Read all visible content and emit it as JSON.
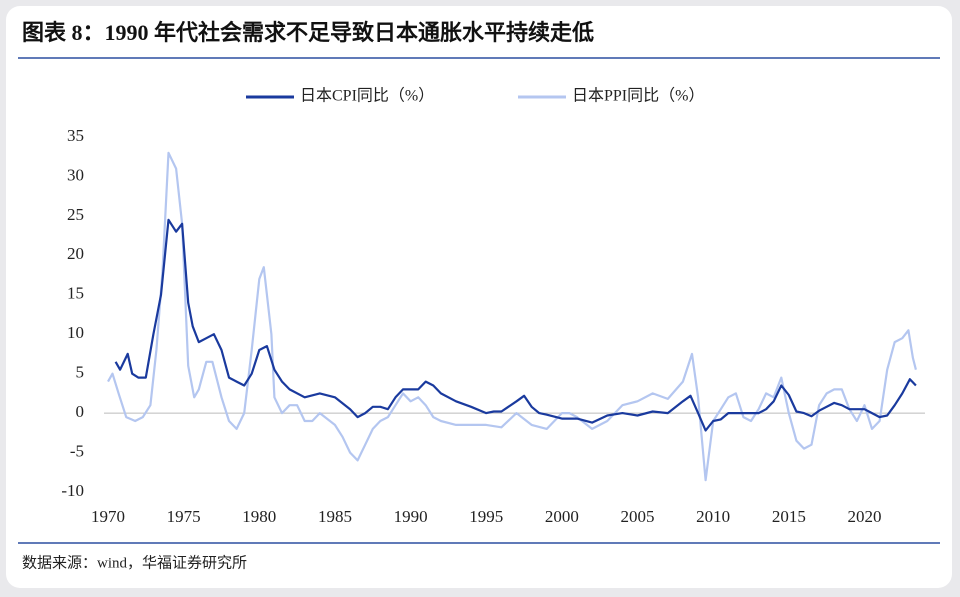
{
  "chart_data": {
    "type": "line",
    "title": "图表 8：1990 年代社会需求不足导致日本通胀水平持续走低",
    "source": "数据来源：wind，华福证券研究所",
    "xlim": [
      1970,
      2024
    ],
    "xticks": [
      1970,
      1975,
      1980,
      1985,
      1990,
      1995,
      2000,
      2005,
      2010,
      2015,
      2020
    ],
    "ylim": [
      -10,
      35
    ],
    "yticks": [
      -10,
      -5,
      0,
      5,
      10,
      15,
      20,
      25,
      30,
      35
    ],
    "legend": "top",
    "series": [
      {
        "name": "日本CPI同比（%）",
        "color": "#1a3a9e",
        "x": [
          1970.5,
          1970.8,
          1971.3,
          1971.6,
          1972,
          1972.5,
          1973,
          1973.5,
          1974,
          1974.5,
          1974.9,
          1975.3,
          1975.6,
          1976,
          1976.5,
          1977,
          1977.5,
          1978,
          1978.5,
          1979,
          1979.5,
          1980,
          1980.5,
          1981,
          1981.5,
          1982,
          1983,
          1984,
          1985,
          1986,
          1986.5,
          1987,
          1987.5,
          1988,
          1988.5,
          1989,
          1989.5,
          1990,
          1990.5,
          1991,
          1991.5,
          1992,
          1993,
          1994,
          1995,
          1995.5,
          1996,
          1997,
          1997.5,
          1998,
          1998.5,
          1999,
          2000,
          2001,
          2002,
          2003,
          2004,
          2005,
          2006,
          2007,
          2008,
          2008.5,
          2009,
          2009.5,
          2010,
          2010.5,
          2011,
          2012,
          2013,
          2013.5,
          2014,
          2014.5,
          2015,
          2015.5,
          2016,
          2016.5,
          2017,
          2018,
          2018.5,
          2019,
          2019.5,
          2020,
          2020.5,
          2021,
          2021.5,
          2022,
          2022.5,
          2023,
          2023.4
        ],
        "values": [
          6.5,
          5.5,
          7.5,
          5,
          4.5,
          4.5,
          10,
          15,
          24.5,
          23,
          24,
          14,
          11,
          9,
          9.5,
          10,
          8,
          4.5,
          4,
          3.5,
          5,
          8,
          8.5,
          5.5,
          4,
          3,
          2,
          2.5,
          2,
          0.5,
          -0.5,
          0,
          0.8,
          0.8,
          0.5,
          2,
          3,
          3,
          3,
          4,
          3.5,
          2.5,
          1.5,
          0.8,
          0,
          0.2,
          0.2,
          1.5,
          2.2,
          0.8,
          0,
          -0.2,
          -0.7,
          -0.7,
          -1.2,
          -0.3,
          0,
          -0.3,
          0.2,
          0,
          1.5,
          2.2,
          0,
          -2.2,
          -1,
          -0.8,
          0,
          0,
          0,
          0.5,
          1.5,
          3.5,
          2.3,
          0.2,
          0,
          -0.4,
          0.3,
          1.3,
          1,
          0.5,
          0.5,
          0.5,
          0,
          -0.5,
          -0.3,
          1,
          2.5,
          4.3,
          3.5
        ]
      },
      {
        "name": "日本PPI同比（%）",
        "color": "#b4c6f0",
        "x": [
          1970,
          1970.3,
          1970.7,
          1971.2,
          1971.8,
          1972.3,
          1972.8,
          1973.2,
          1973.6,
          1974,
          1974.5,
          1974.9,
          1975.3,
          1975.7,
          1976,
          1976.5,
          1976.9,
          1977.5,
          1978,
          1978.5,
          1979,
          1979.5,
          1980,
          1980.3,
          1980.8,
          1981,
          1981.5,
          1982,
          1982.5,
          1983,
          1983.5,
          1984,
          1985,
          1985.5,
          1986,
          1986.5,
          1987,
          1987.5,
          1988,
          1988.5,
          1989,
          1989.5,
          1990,
          1990.5,
          1991,
          1991.5,
          1992,
          1993,
          1994,
          1995,
          1996,
          1997,
          1998,
          1999,
          2000,
          2000.5,
          2001,
          2002,
          2003,
          2004,
          2005,
          2006,
          2007,
          2008,
          2008.6,
          2009,
          2009.5,
          2010,
          2010.5,
          2011,
          2011.5,
          2012,
          2012.5,
          2013,
          2013.5,
          2014,
          2014.5,
          2015,
          2015.5,
          2016,
          2016.5,
          2017,
          2017.5,
          2018,
          2018.5,
          2019,
          2019.5,
          2020,
          2020.5,
          2021,
          2021.5,
          2022,
          2022.5,
          2022.9,
          2023.2,
          2023.4
        ],
        "values": [
          4,
          5,
          2.5,
          -0.5,
          -1,
          -0.5,
          1,
          8,
          18,
          33,
          31,
          24,
          6,
          2,
          3,
          6.5,
          6.5,
          2,
          -1,
          -2,
          0,
          8,
          17,
          18.5,
          10,
          2,
          0,
          1,
          1,
          -1,
          -1,
          0,
          -1.5,
          -3,
          -5,
          -6,
          -4,
          -2,
          -1,
          -0.5,
          1,
          2.5,
          1.5,
          2,
          1,
          -0.5,
          -1,
          -1.5,
          -1.5,
          -1.5,
          -1.8,
          0,
          -1.5,
          -2,
          0,
          0,
          -0.5,
          -2,
          -1,
          1,
          1.5,
          2.5,
          1.8,
          4,
          7.5,
          2,
          -8.5,
          -1,
          0.5,
          2,
          2.5,
          -0.5,
          -1,
          0.5,
          2.5,
          2,
          4.5,
          0,
          -3.5,
          -4.5,
          -4,
          1,
          2.5,
          3,
          3,
          0.5,
          -1,
          1,
          -2,
          -1,
          5.5,
          9,
          9.5,
          10.5,
          7,
          5.5
        ]
      }
    ]
  }
}
